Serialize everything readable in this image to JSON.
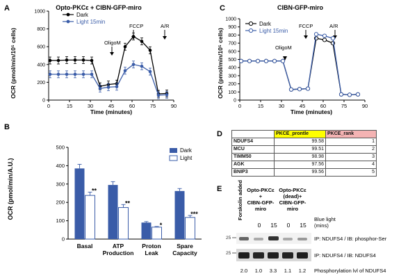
{
  "panels": {
    "A": {
      "letter": "A",
      "title": "Opto-PKCε + CIBN-GFP-miro",
      "legend": [
        "Dark",
        "Light 15min"
      ],
      "annotations": {
        "oligo": "OligoM",
        "fccp": "FCCP",
        "ar": "A/R"
      },
      "ylabel": "OCR (pmol/min/10⁵ cells)",
      "xlabel": "Time (minutes)"
    },
    "B": {
      "letter": "B",
      "ylabel": "OCR (pmol/min/A.U.)",
      "legend": [
        "Dark",
        "Light"
      ],
      "significance": [
        "**",
        "**",
        "*",
        "***"
      ]
    },
    "C": {
      "letter": "C",
      "title": "CIBN-GFP-miro",
      "legend": [
        "Dark",
        "Light 15min"
      ],
      "annotations": {
        "oligo": "OligoM",
        "fccp": "FCCP",
        "ar": "A/R"
      },
      "ylabel": "OCR (pmol/min/10⁵ cells)",
      "xlabel": "Time (minutes)"
    },
    "D": {
      "letter": "D",
      "headers": [
        "",
        "PKCE_prontle",
        "PKCE_rank"
      ],
      "rows": [
        [
          "NDUFS4",
          "99.58",
          "1"
        ],
        [
          "MCU",
          "99.51",
          "2"
        ],
        [
          "TIMM50",
          "98.98",
          "3"
        ],
        [
          "AGK",
          "97.56",
          "4"
        ],
        [
          "BNIP3",
          "99.56",
          "5"
        ]
      ]
    },
    "E": {
      "letter": "E",
      "forskolin": "Forskolin added",
      "group1": [
        "Opto-PKCε",
        "+",
        "CIBN-GFP-",
        "miro"
      ],
      "group2": [
        "Opto-PKCε",
        "(dead)+",
        "CIBN-GFP-",
        "miro"
      ],
      "lanes": [
        "0",
        "15",
        "0",
        "15"
      ],
      "bluelight": [
        "Blue light",
        "(mins)"
      ],
      "blot1_label": "IP: NDUFS4 / IB: phosphor-Ser",
      "blot2_label": "IP: NDUFS4 / IB: NDUFS4",
      "marker": "25",
      "quant": [
        "2.0",
        "1.0",
        "3.3",
        "1.1",
        "1.2"
      ],
      "quant_label": "Phosphorylation lvl of NDUFS4"
    }
  },
  "chart_data": [
    {
      "id": "A",
      "type": "line",
      "title": "Opto-PKCε + CIBN-GFP-miro",
      "xlabel": "Time (minutes)",
      "ylabel": "OCR (pmol/min/10⁵ cells)",
      "xlim": [
        0,
        90
      ],
      "ylim": [
        0,
        1000
      ],
      "xticks": [
        "0",
        "15",
        "30",
        "45",
        "60",
        "75",
        "90"
      ],
      "yticks": [
        "0",
        "200",
        "400",
        "600",
        "800",
        "1000"
      ],
      "x": [
        1,
        7,
        13,
        19,
        25,
        31,
        37,
        43,
        49,
        55,
        61,
        67,
        73,
        79,
        85
      ],
      "series": [
        {
          "name": "Dark",
          "values": [
            445,
            445,
            450,
            450,
            450,
            445,
            155,
            175,
            185,
            600,
            715,
            660,
            560,
            70,
            75
          ]
        },
        {
          "name": "Light 15min",
          "values": [
            290,
            290,
            290,
            290,
            290,
            290,
            130,
            145,
            150,
            330,
            400,
            380,
            320,
            55,
            60
          ]
        }
      ]
    },
    {
      "id": "B",
      "type": "bar",
      "ylabel": "OCR (pmol/min/A.U.)",
      "ylim": [
        0,
        500
      ],
      "yticks": [
        "0",
        "100",
        "200",
        "300",
        "400",
        "500"
      ],
      "categories": [
        "Basal",
        "ATP Production",
        "Proton Leak",
        "Spare Capacity"
      ],
      "series": [
        {
          "name": "Dark",
          "values": [
            385,
            295,
            90,
            262
          ]
        },
        {
          "name": "Light",
          "values": [
            238,
            172,
            65,
            118
          ]
        }
      ]
    },
    {
      "id": "C",
      "type": "line",
      "title": "CIBN-GFP-miro",
      "xlabel": "Time (minutes)",
      "ylabel": "OCR (pmol/min/10⁵ cells)",
      "xlim": [
        0,
        90
      ],
      "ylim": [
        0,
        1000
      ],
      "xticks": [
        "0",
        "15",
        "30",
        "45",
        "60",
        "75",
        "90"
      ],
      "yticks": [
        "0",
        "100",
        "200",
        "300",
        "400",
        "500",
        "600",
        "700",
        "800",
        "900",
        "1000"
      ],
      "x": [
        1,
        7,
        13,
        19,
        25,
        31,
        37,
        43,
        49,
        55,
        61,
        67,
        73,
        79,
        85
      ],
      "series": [
        {
          "name": "Dark",
          "values": [
            480,
            480,
            480,
            480,
            480,
            480,
            130,
            135,
            140,
            760,
            740,
            700,
            70,
            65,
            70
          ]
        },
        {
          "name": "Light 15min",
          "values": [
            480,
            480,
            480,
            480,
            480,
            480,
            130,
            135,
            140,
            810,
            790,
            760,
            70,
            65,
            70
          ]
        }
      ]
    }
  ]
}
